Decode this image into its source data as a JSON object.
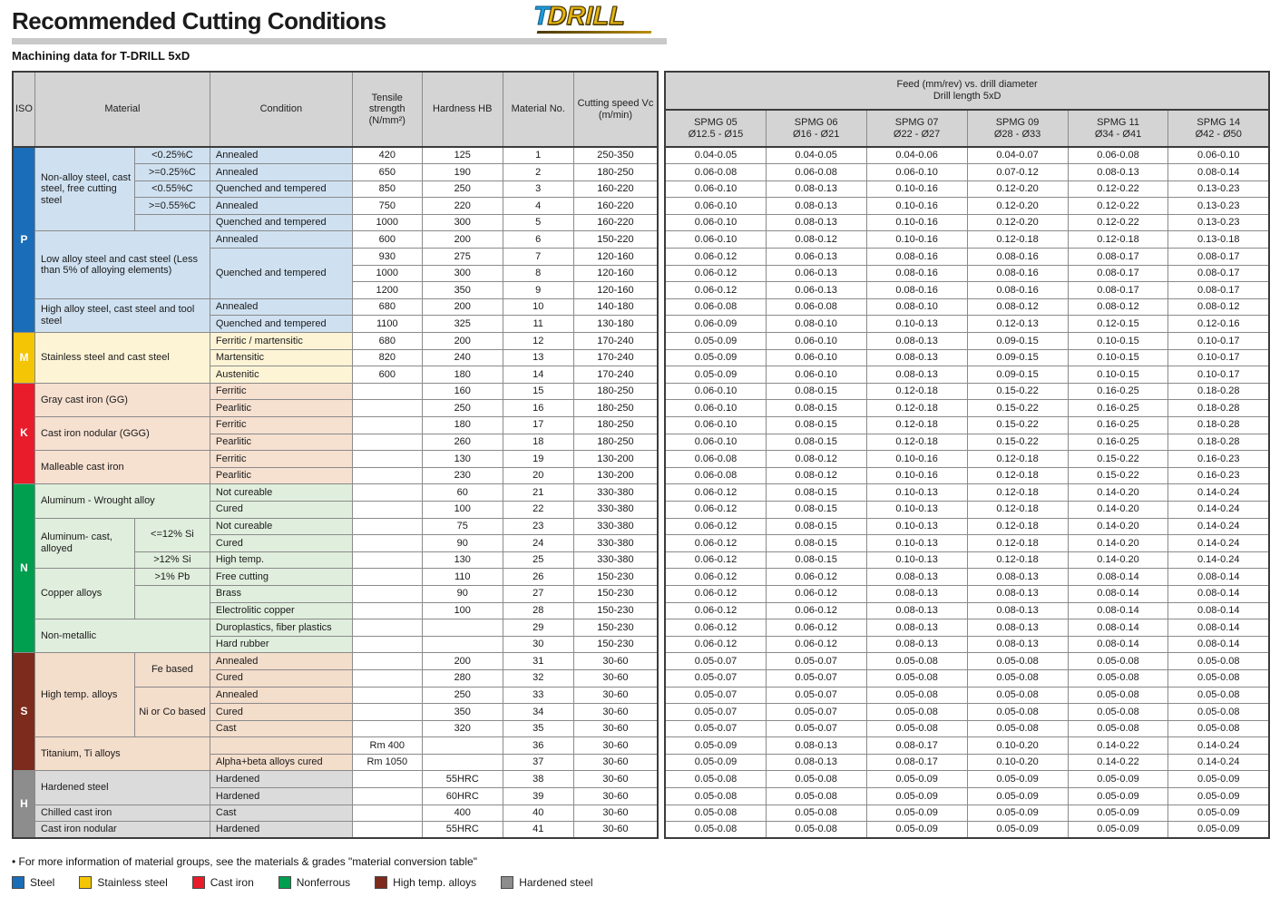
{
  "header": {
    "title": "Recommended Cutting Conditions",
    "subtitle": "Machining data for T-DRILL 5xD",
    "logo": {
      "t": "T",
      "rest": "DRILL"
    }
  },
  "left_headers": {
    "iso": "ISO",
    "material": "Material",
    "condition": "Condition",
    "tensile": "Tensile strength (N/mm²)",
    "hardness": "Hardness HB",
    "material_no": "Material No.",
    "cutting_speed": "Cutting speed Vc (m/min)"
  },
  "feed_header": {
    "line1": "Feed (mm/rev) vs. drill diameter",
    "line2": "Drill length 5xD",
    "columns": [
      {
        "name": "SPMG 05",
        "range": "Ø12.5 - Ø15"
      },
      {
        "name": "SPMG 06",
        "range": "Ø16 - Ø21"
      },
      {
        "name": "SPMG 07",
        "range": "Ø22 - Ø27"
      },
      {
        "name": "SPMG 09",
        "range": "Ø28 - Ø33"
      },
      {
        "name": "SPMG 11",
        "range": "Ø34 - Ø41"
      },
      {
        "name": "SPMG 14",
        "range": "Ø42 - Ø50"
      }
    ]
  },
  "sections": [
    {
      "iso": "P",
      "band_color": "#1a6db8",
      "cell_bg": "#cfe1f1",
      "groups": [
        {
          "name": "Non-alloy steel, cast steel, free cutting steel",
          "rows": 5,
          "subs": [
            {
              "label": "<0.25%C",
              "span": 1
            },
            {
              "label": ">=0.25%C",
              "span": 1
            },
            {
              "label": "<0.55%C",
              "span": 1
            },
            {
              "label": ">=0.55%C",
              "span": 1
            },
            {
              "label": "",
              "span": 1
            }
          ]
        },
        {
          "name": "Low alloy steel and cast steel (Less than 5% of alloying elements)",
          "rows": 4
        },
        {
          "name": "High alloy steel, cast steel and tool steel",
          "rows": 2
        }
      ]
    },
    {
      "iso": "M",
      "band_color": "#f3c504",
      "cell_bg": "#fdf4d6",
      "groups": [
        {
          "name": "Stainless steel and cast steel",
          "rows": 3
        }
      ]
    },
    {
      "iso": "K",
      "band_color": "#e81c2a",
      "cell_bg": "#f6e0d0",
      "groups": [
        {
          "name": "Gray cast iron (GG)",
          "rows": 2
        },
        {
          "name": "Cast iron nodular (GGG)",
          "rows": 2
        },
        {
          "name": "Malleable cast iron",
          "rows": 2
        }
      ]
    },
    {
      "iso": "N",
      "band_color": "#009e4f",
      "cell_bg": "#e0eedd",
      "groups": [
        {
          "name": "Aluminum - Wrought alloy",
          "rows": 2
        },
        {
          "name": "Aluminum- cast, alloyed",
          "rows": 3,
          "subs": [
            {
              "label": "<=12% Si",
              "span": 2
            },
            {
              "label": ">12% Si",
              "span": 1
            }
          ]
        },
        {
          "name": "Copper alloys",
          "rows": 3,
          "subs": [
            {
              "label": ">1% Pb",
              "span": 1
            },
            {
              "label": "",
              "span": 2
            }
          ]
        },
        {
          "name": "Non-metallic",
          "rows": 2
        }
      ]
    },
    {
      "iso": "S",
      "band_color": "#7d2b1c",
      "cell_bg": "#f3ddcb",
      "groups": [
        {
          "name": "High temp. alloys",
          "rows": 5,
          "subs": [
            {
              "label": "Fe based",
              "span": 2
            },
            {
              "label": "Ni or Co based",
              "span": 3
            }
          ]
        },
        {
          "name": "Titanium, Ti alloys",
          "rows": 2
        }
      ]
    },
    {
      "iso": "H",
      "band_color": "#8d8d8d",
      "cell_bg": "#dbdbdb",
      "groups": [
        {
          "name": "Hardened steel",
          "rows": 2
        },
        {
          "name": "Chilled cast iron",
          "rows": 1
        },
        {
          "name": "Cast iron nodular",
          "rows": 1
        }
      ]
    }
  ],
  "rows": [
    {
      "no": "1",
      "condition": "Annealed",
      "cond_span": 1,
      "tensile": "420",
      "hb": "125",
      "vc": "250-350",
      "feeds": [
        "0.04-0.05",
        "0.04-0.05",
        "0.04-0.06",
        "0.04-0.07",
        "0.06-0.08",
        "0.06-0.10"
      ]
    },
    {
      "no": "2",
      "condition": "Annealed",
      "cond_span": 1,
      "tensile": "650",
      "hb": "190",
      "vc": "180-250",
      "feeds": [
        "0.06-0.08",
        "0.06-0.08",
        "0.06-0.10",
        "0.07-0.12",
        "0.08-0.13",
        "0.08-0.14"
      ]
    },
    {
      "no": "3",
      "condition": "Quenched and tempered",
      "cond_span": 1,
      "tensile": "850",
      "hb": "250",
      "vc": "160-220",
      "feeds": [
        "0.06-0.10",
        "0.08-0.13",
        "0.10-0.16",
        "0.12-0.20",
        "0.12-0.22",
        "0.13-0.23"
      ]
    },
    {
      "no": "4",
      "condition": "Annealed",
      "cond_span": 1,
      "tensile": "750",
      "hb": "220",
      "vc": "160-220",
      "feeds": [
        "0.06-0.10",
        "0.08-0.13",
        "0.10-0.16",
        "0.12-0.20",
        "0.12-0.22",
        "0.13-0.23"
      ]
    },
    {
      "no": "5",
      "condition": "Quenched and tempered",
      "cond_span": 1,
      "tensile": "1000",
      "hb": "300",
      "vc": "160-220",
      "feeds": [
        "0.06-0.10",
        "0.08-0.13",
        "0.10-0.16",
        "0.12-0.20",
        "0.12-0.22",
        "0.13-0.23"
      ]
    },
    {
      "no": "6",
      "condition": "Annealed",
      "cond_span": 1,
      "tensile": "600",
      "hb": "200",
      "vc": "150-220",
      "feeds": [
        "0.06-0.10",
        "0.08-0.12",
        "0.10-0.16",
        "0.12-0.18",
        "0.12-0.18",
        "0.13-0.18"
      ]
    },
    {
      "no": "7",
      "condition": "Quenched and tempered",
      "cond_span": 3,
      "tensile": "930",
      "hb": "275",
      "vc": "120-160",
      "feeds": [
        "0.06-0.12",
        "0.06-0.13",
        "0.08-0.16",
        "0.08-0.16",
        "0.08-0.17",
        "0.08-0.17"
      ]
    },
    {
      "no": "8",
      "condition": "",
      "cond_span": 0,
      "tensile": "1000",
      "hb": "300",
      "vc": "120-160",
      "feeds": [
        "0.06-0.12",
        "0.06-0.13",
        "0.08-0.16",
        "0.08-0.16",
        "0.08-0.17",
        "0.08-0.17"
      ]
    },
    {
      "no": "9",
      "condition": "",
      "cond_span": 0,
      "tensile": "1200",
      "hb": "350",
      "vc": "120-160",
      "feeds": [
        "0.06-0.12",
        "0.06-0.13",
        "0.08-0.16",
        "0.08-0.16",
        "0.08-0.17",
        "0.08-0.17"
      ]
    },
    {
      "no": "10",
      "condition": "Annealed",
      "cond_span": 1,
      "tensile": "680",
      "hb": "200",
      "vc": "140-180",
      "feeds": [
        "0.06-0.08",
        "0.06-0.08",
        "0.08-0.10",
        "0.08-0.12",
        "0.08-0.12",
        "0.08-0.12"
      ]
    },
    {
      "no": "11",
      "condition": "Quenched and tempered",
      "cond_span": 1,
      "tensile": "1100",
      "hb": "325",
      "vc": "130-180",
      "feeds": [
        "0.06-0.09",
        "0.08-0.10",
        "0.10-0.13",
        "0.12-0.13",
        "0.12-0.15",
        "0.12-0.16"
      ]
    },
    {
      "no": "12",
      "condition": "Ferritic / martensitic",
      "cond_span": 1,
      "tensile": "680",
      "hb": "200",
      "vc": "170-240",
      "feeds": [
        "0.05-0.09",
        "0.06-0.10",
        "0.08-0.13",
        "0.09-0.15",
        "0.10-0.15",
        "0.10-0.17"
      ]
    },
    {
      "no": "13",
      "condition": "Martensitic",
      "cond_span": 1,
      "tensile": "820",
      "hb": "240",
      "vc": "170-240",
      "feeds": [
        "0.05-0.09",
        "0.06-0.10",
        "0.08-0.13",
        "0.09-0.15",
        "0.10-0.15",
        "0.10-0.17"
      ]
    },
    {
      "no": "14",
      "condition": "Austenitic",
      "cond_span": 1,
      "tensile": "600",
      "hb": "180",
      "vc": "170-240",
      "feeds": [
        "0.05-0.09",
        "0.06-0.10",
        "0.08-0.13",
        "0.09-0.15",
        "0.10-0.15",
        "0.10-0.17"
      ]
    },
    {
      "no": "15",
      "condition": "Ferritic",
      "cond_span": 1,
      "tensile": "",
      "hb": "160",
      "vc": "180-250",
      "feeds": [
        "0.06-0.10",
        "0.08-0.15",
        "0.12-0.18",
        "0.15-0.22",
        "0.16-0.25",
        "0.18-0.28"
      ]
    },
    {
      "no": "16",
      "condition": "Pearlitic",
      "cond_span": 1,
      "tensile": "",
      "hb": "250",
      "vc": "180-250",
      "feeds": [
        "0.06-0.10",
        "0.08-0.15",
        "0.12-0.18",
        "0.15-0.22",
        "0.16-0.25",
        "0.18-0.28"
      ]
    },
    {
      "no": "17",
      "condition": "Ferritic",
      "cond_span": 1,
      "tensile": "",
      "hb": "180",
      "vc": "180-250",
      "feeds": [
        "0.06-0.10",
        "0.08-0.15",
        "0.12-0.18",
        "0.15-0.22",
        "0.16-0.25",
        "0.18-0.28"
      ]
    },
    {
      "no": "18",
      "condition": "Pearlitic",
      "cond_span": 1,
      "tensile": "",
      "hb": "260",
      "vc": "180-250",
      "feeds": [
        "0.06-0.10",
        "0.08-0.15",
        "0.12-0.18",
        "0.15-0.22",
        "0.16-0.25",
        "0.18-0.28"
      ]
    },
    {
      "no": "19",
      "condition": "Ferritic",
      "cond_span": 1,
      "tensile": "",
      "hb": "130",
      "vc": "130-200",
      "feeds": [
        "0.06-0.08",
        "0.08-0.12",
        "0.10-0.16",
        "0.12-0.18",
        "0.15-0.22",
        "0.16-0.23"
      ]
    },
    {
      "no": "20",
      "condition": "Pearlitic",
      "cond_span": 1,
      "tensile": "",
      "hb": "230",
      "vc": "130-200",
      "feeds": [
        "0.06-0.08",
        "0.08-0.12",
        "0.10-0.16",
        "0.12-0.18",
        "0.15-0.22",
        "0.16-0.23"
      ]
    },
    {
      "no": "21",
      "condition": "Not cureable",
      "cond_span": 1,
      "tensile": "",
      "hb": "60",
      "vc": "330-380",
      "feeds": [
        "0.06-0.12",
        "0.08-0.15",
        "0.10-0.13",
        "0.12-0.18",
        "0.14-0.20",
        "0.14-0.24"
      ]
    },
    {
      "no": "22",
      "condition": "Cured",
      "cond_span": 1,
      "tensile": "",
      "hb": "100",
      "vc": "330-380",
      "feeds": [
        "0.06-0.12",
        "0.08-0.15",
        "0.10-0.13",
        "0.12-0.18",
        "0.14-0.20",
        "0.14-0.24"
      ]
    },
    {
      "no": "23",
      "condition": "Not cureable",
      "cond_span": 1,
      "tensile": "",
      "hb": "75",
      "vc": "330-380",
      "feeds": [
        "0.06-0.12",
        "0.08-0.15",
        "0.10-0.13",
        "0.12-0.18",
        "0.14-0.20",
        "0.14-0.24"
      ]
    },
    {
      "no": "24",
      "condition": "Cured",
      "cond_span": 1,
      "tensile": "",
      "hb": "90",
      "vc": "330-380",
      "feeds": [
        "0.06-0.12",
        "0.08-0.15",
        "0.10-0.13",
        "0.12-0.18",
        "0.14-0.20",
        "0.14-0.24"
      ]
    },
    {
      "no": "25",
      "condition": "High temp.",
      "cond_span": 1,
      "tensile": "",
      "hb": "130",
      "vc": "330-380",
      "feeds": [
        "0.06-0.12",
        "0.08-0.15",
        "0.10-0.13",
        "0.12-0.18",
        "0.14-0.20",
        "0.14-0.24"
      ]
    },
    {
      "no": "26",
      "condition": "Free cutting",
      "cond_span": 1,
      "tensile": "",
      "hb": "110",
      "vc": "150-230",
      "feeds": [
        "0.06-0.12",
        "0.06-0.12",
        "0.08-0.13",
        "0.08-0.13",
        "0.08-0.14",
        "0.08-0.14"
      ]
    },
    {
      "no": "27",
      "condition": "Brass",
      "cond_span": 1,
      "tensile": "",
      "hb": "90",
      "vc": "150-230",
      "feeds": [
        "0.06-0.12",
        "0.06-0.12",
        "0.08-0.13",
        "0.08-0.13",
        "0.08-0.14",
        "0.08-0.14"
      ]
    },
    {
      "no": "28",
      "condition": "Electrolitic copper",
      "cond_span": 1,
      "tensile": "",
      "hb": "100",
      "vc": "150-230",
      "feeds": [
        "0.06-0.12",
        "0.06-0.12",
        "0.08-0.13",
        "0.08-0.13",
        "0.08-0.14",
        "0.08-0.14"
      ]
    },
    {
      "no": "29",
      "condition": "Duroplastics, fiber plastics",
      "cond_span": 1,
      "tensile": "",
      "hb": "",
      "vc": "150-230",
      "feeds": [
        "0.06-0.12",
        "0.06-0.12",
        "0.08-0.13",
        "0.08-0.13",
        "0.08-0.14",
        "0.08-0.14"
      ]
    },
    {
      "no": "30",
      "condition": "Hard rubber",
      "cond_span": 1,
      "tensile": "",
      "hb": "",
      "vc": "150-230",
      "feeds": [
        "0.06-0.12",
        "0.06-0.12",
        "0.08-0.13",
        "0.08-0.13",
        "0.08-0.14",
        "0.08-0.14"
      ]
    },
    {
      "no": "31",
      "condition": "Annealed",
      "cond_span": 1,
      "tensile": "",
      "hb": "200",
      "vc": "30-60",
      "feeds": [
        "0.05-0.07",
        "0.05-0.07",
        "0.05-0.08",
        "0.05-0.08",
        "0.05-0.08",
        "0.05-0.08"
      ]
    },
    {
      "no": "32",
      "condition": "Cured",
      "cond_span": 1,
      "tensile": "",
      "hb": "280",
      "vc": "30-60",
      "feeds": [
        "0.05-0.07",
        "0.05-0.07",
        "0.05-0.08",
        "0.05-0.08",
        "0.05-0.08",
        "0.05-0.08"
      ]
    },
    {
      "no": "33",
      "condition": "Annealed",
      "cond_span": 1,
      "tensile": "",
      "hb": "250",
      "vc": "30-60",
      "feeds": [
        "0.05-0.07",
        "0.05-0.07",
        "0.05-0.08",
        "0.05-0.08",
        "0.05-0.08",
        "0.05-0.08"
      ]
    },
    {
      "no": "34",
      "condition": "Cured",
      "cond_span": 1,
      "tensile": "",
      "hb": "350",
      "vc": "30-60",
      "feeds": [
        "0.05-0.07",
        "0.05-0.07",
        "0.05-0.08",
        "0.05-0.08",
        "0.05-0.08",
        "0.05-0.08"
      ]
    },
    {
      "no": "35",
      "condition": "Cast",
      "cond_span": 1,
      "tensile": "",
      "hb": "320",
      "vc": "30-60",
      "feeds": [
        "0.05-0.07",
        "0.05-0.07",
        "0.05-0.08",
        "0.05-0.08",
        "0.05-0.08",
        "0.05-0.08"
      ]
    },
    {
      "no": "36",
      "condition": "",
      "cond_span": 1,
      "tensile": "Rm 400",
      "hb": "",
      "vc": "30-60",
      "feeds": [
        "0.05-0.09",
        "0.08-0.13",
        "0.08-0.17",
        "0.10-0.20",
        "0.14-0.22",
        "0.14-0.24"
      ]
    },
    {
      "no": "37",
      "condition": "Alpha+beta alloys cured",
      "cond_span": 1,
      "tensile": "Rm 1050",
      "hb": "",
      "vc": "30-60",
      "feeds": [
        "0.05-0.09",
        "0.08-0.13",
        "0.08-0.17",
        "0.10-0.20",
        "0.14-0.22",
        "0.14-0.24"
      ]
    },
    {
      "no": "38",
      "condition": "Hardened",
      "cond_span": 1,
      "tensile": "",
      "hb": "55HRC",
      "vc": "30-60",
      "feeds": [
        "0.05-0.08",
        "0.05-0.08",
        "0.05-0.09",
        "0.05-0.09",
        "0.05-0.09",
        "0.05-0.09"
      ]
    },
    {
      "no": "39",
      "condition": "Hardened",
      "cond_span": 1,
      "tensile": "",
      "hb": "60HRC",
      "vc": "30-60",
      "feeds": [
        "0.05-0.08",
        "0.05-0.08",
        "0.05-0.09",
        "0.05-0.09",
        "0.05-0.09",
        "0.05-0.09"
      ]
    },
    {
      "no": "40",
      "condition": "Cast",
      "cond_span": 1,
      "tensile": "",
      "hb": "400",
      "vc": "30-60",
      "feeds": [
        "0.05-0.08",
        "0.05-0.08",
        "0.05-0.09",
        "0.05-0.09",
        "0.05-0.09",
        "0.05-0.09"
      ]
    },
    {
      "no": "41",
      "condition": "Hardened",
      "cond_span": 1,
      "tensile": "",
      "hb": "55HRC",
      "vc": "30-60",
      "feeds": [
        "0.05-0.08",
        "0.05-0.08",
        "0.05-0.09",
        "0.05-0.09",
        "0.05-0.09",
        "0.05-0.09"
      ]
    }
  ],
  "footer": {
    "note": "• For more information of material groups, see the materials & grades \"material conversion table\"",
    "legend": [
      {
        "label": "Steel",
        "color": "#1a6db8"
      },
      {
        "label": "Stainless steel",
        "color": "#f3c504"
      },
      {
        "label": "Cast iron",
        "color": "#e81c2a"
      },
      {
        "label": "Nonferrous",
        "color": "#009e4f"
      },
      {
        "label": "High temp. alloys",
        "color": "#7d2b1c"
      },
      {
        "label": "Hardened steel",
        "color": "#8d8d8d"
      }
    ]
  }
}
